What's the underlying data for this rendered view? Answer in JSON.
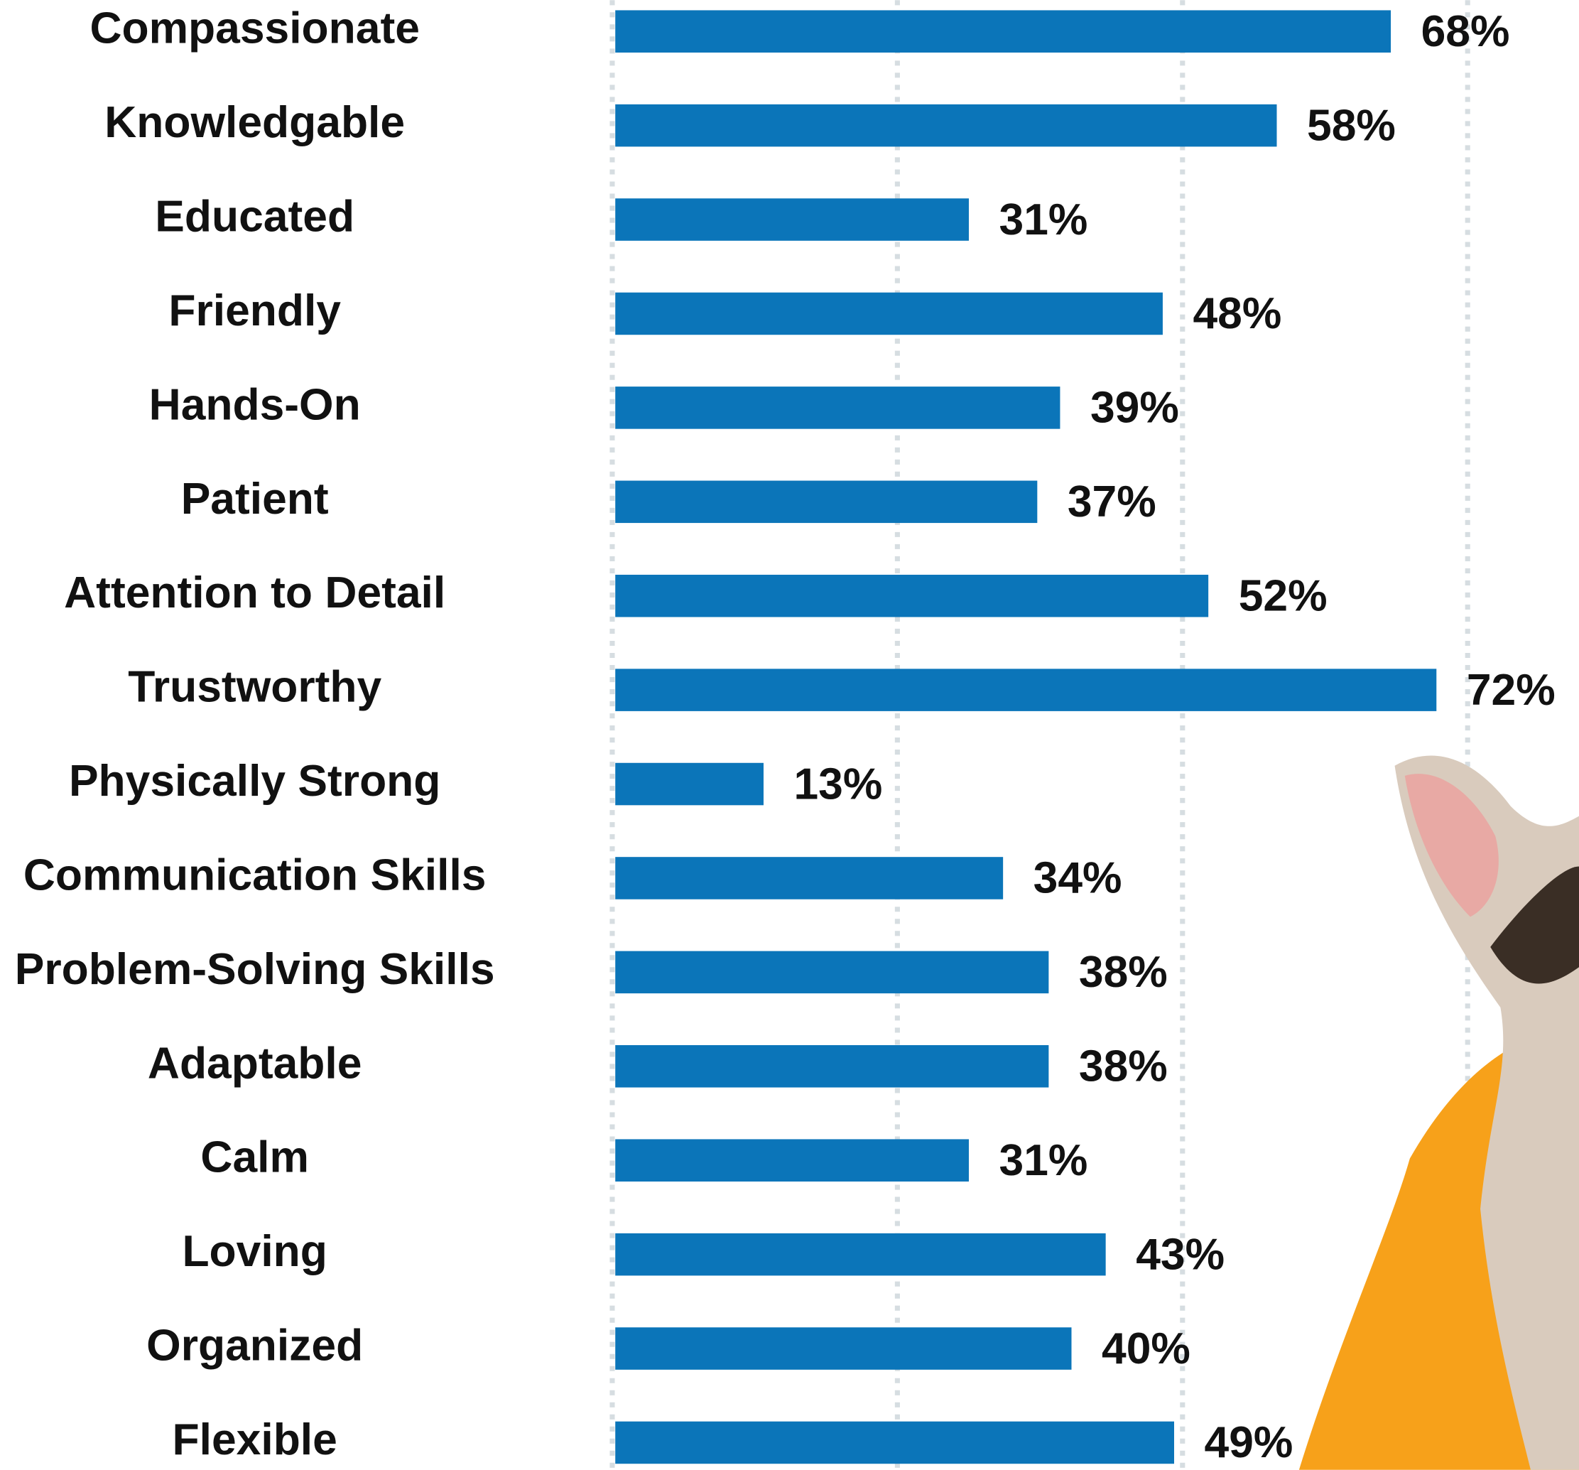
{
  "chart_data": {
    "type": "bar",
    "orientation": "horizontal",
    "categories": [
      "Compassionate",
      "Knowledgable",
      "Educated",
      "Friendly",
      "Hands-On",
      "Patient",
      "Attention to Detail",
      "Trustworthy",
      "Physically Strong",
      "Communication Skills",
      "Problem-Solving Skills",
      "Adaptable",
      "Calm",
      "Loving",
      "Organized",
      "Flexible"
    ],
    "values": [
      68,
      58,
      31,
      48,
      39,
      37,
      52,
      72,
      13,
      34,
      38,
      38,
      31,
      43,
      40,
      49
    ],
    "value_labels": [
      "68%",
      "58%",
      "31%",
      "48%",
      "39%",
      "37%",
      "52%",
      "72%",
      "13%",
      "34%",
      "38%",
      "38%",
      "31%",
      "43%",
      "40%",
      "49%"
    ],
    "color": "#0b75b9",
    "xlim": [
      0,
      84.5
    ],
    "xticks": [
      0,
      25,
      50,
      75
    ],
    "grid": true
  }
}
